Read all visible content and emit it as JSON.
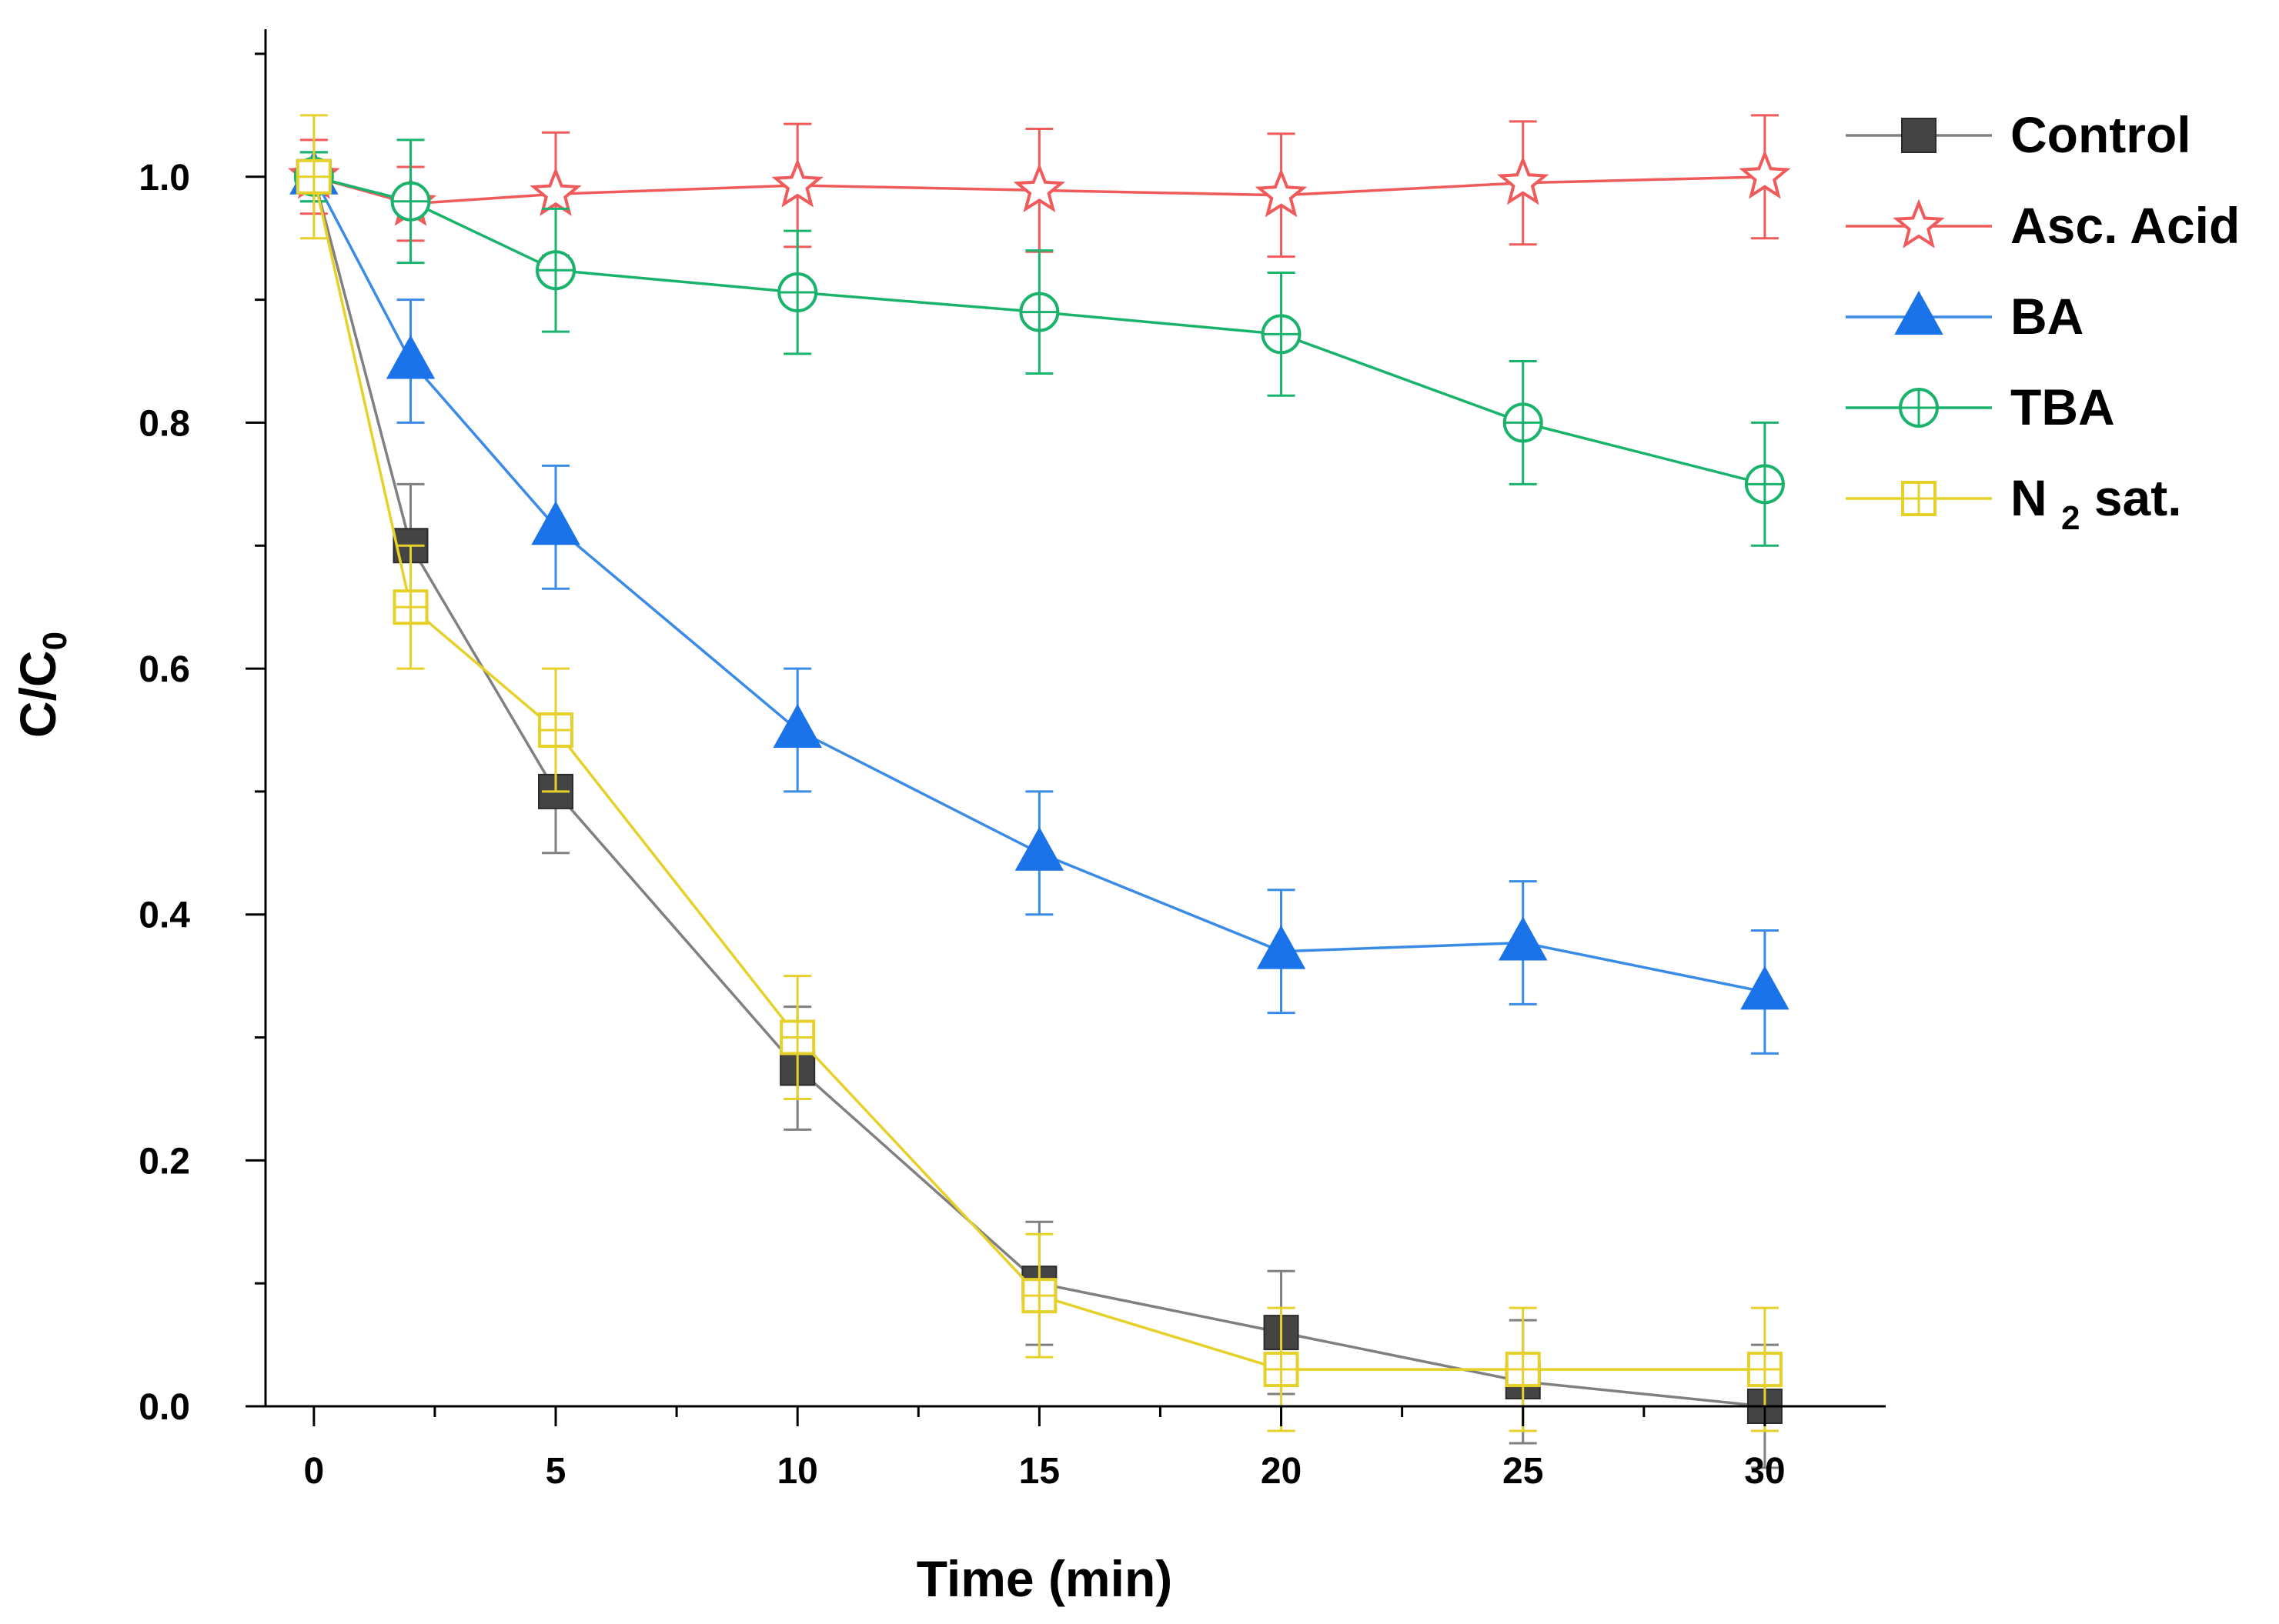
{
  "chart_data": {
    "type": "line",
    "title": "",
    "xlabel": "Time (min)",
    "ylabel": "C/C",
    "ylabel_sub": "0",
    "xlim": [
      -1,
      32.5
    ],
    "ylim": [
      0,
      1.12
    ],
    "xticks": [
      0,
      5,
      10,
      15,
      20,
      25,
      30
    ],
    "xtick_labels": [
      "0",
      "5",
      "10",
      "15",
      "20",
      "25",
      "30"
    ],
    "xminor": [
      2.5,
      7.5,
      12.5,
      17.5,
      22.5,
      27.5
    ],
    "yticks": [
      0,
      0.2,
      0.4,
      0.6,
      0.8,
      1.0
    ],
    "ytick_labels": [
      "0.0",
      "0.2",
      "0.4",
      "0.6",
      "0.8",
      "1.0"
    ],
    "yminor": [
      0.1,
      0.3,
      0.5,
      0.7,
      0.9,
      1.1
    ],
    "legend_position": "top-right",
    "x": [
      0,
      2,
      5,
      10,
      15,
      20,
      25,
      30
    ],
    "series": [
      {
        "name": "Control",
        "legend_label": "Control",
        "color": "#444444",
        "line_color": "#808080",
        "marker": "filled-square",
        "values": [
          1.0,
          0.7,
          0.5,
          0.275,
          0.1,
          0.06,
          0.02,
          0.0
        ],
        "errors": [
          0.01,
          0.05,
          0.05,
          0.05,
          0.05,
          0.05,
          0.05,
          0.05
        ]
      },
      {
        "name": "Asc. Acid",
        "legend_label": "Asc. Acid",
        "color": "#f05a5a",
        "line_color": "#f05a5a",
        "marker": "open-star",
        "values": [
          1.0,
          0.978,
          0.986,
          0.993,
          0.989,
          0.985,
          0.995,
          1.0
        ],
        "errors": [
          0.03,
          0.03,
          0.05,
          0.05,
          0.05,
          0.05,
          0.05,
          0.05
        ]
      },
      {
        "name": "BA",
        "legend_label": "BA",
        "color": "#1a73e8",
        "line_color": "#3a8be6",
        "marker": "filled-triangle",
        "values": [
          1.0,
          0.85,
          0.715,
          0.55,
          0.45,
          0.37,
          0.377,
          0.337
        ],
        "errors": [
          0.02,
          0.05,
          0.05,
          0.05,
          0.05,
          0.05,
          0.05,
          0.05
        ]
      },
      {
        "name": "TBA",
        "legend_label": "TBA",
        "color": "#19b36b",
        "line_color": "#19b36b",
        "marker": "circle-plus",
        "values": [
          1.0,
          0.98,
          0.924,
          0.906,
          0.89,
          0.872,
          0.8,
          0.75
        ],
        "errors": [
          0.02,
          0.05,
          0.05,
          0.05,
          0.05,
          0.05,
          0.05,
          0.05
        ]
      },
      {
        "name": "N2 sat.",
        "legend_label": "N",
        "legend_sub": "2",
        "legend_suffix": " sat.",
        "color": "#e6d02a",
        "line_color": "#e6d02a",
        "marker": "square-plus",
        "values": [
          1.0,
          0.65,
          0.55,
          0.3,
          0.09,
          0.03,
          0.03,
          0.03
        ],
        "errors": [
          0.05,
          0.05,
          0.05,
          0.05,
          0.05,
          0.05,
          0.05,
          0.05
        ]
      }
    ]
  }
}
